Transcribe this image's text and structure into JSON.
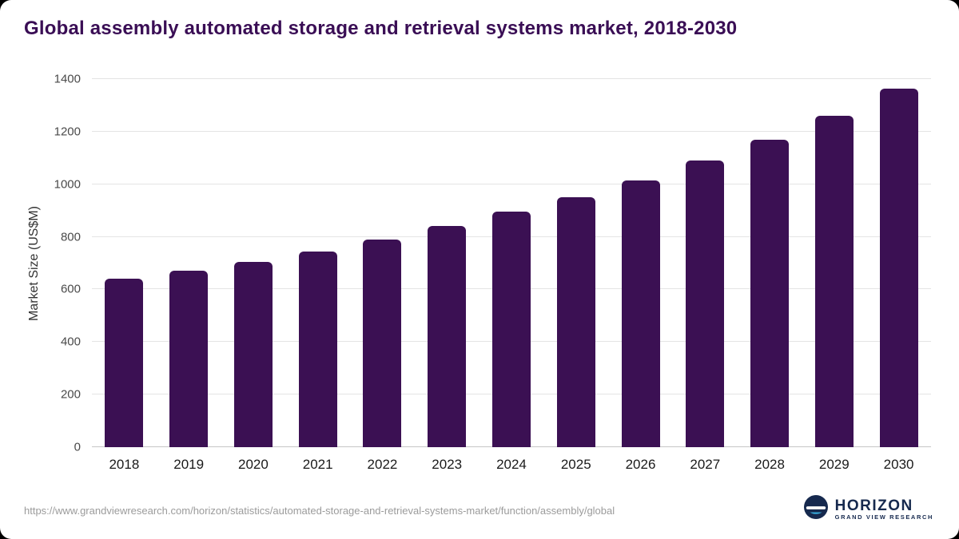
{
  "title": "Global assembly automated storage and retrieval systems market, 2018-2030",
  "chart_data": {
    "type": "bar",
    "title": "Global assembly automated storage and retrieval systems market, 2018-2030",
    "categories": [
      "2018",
      "2019",
      "2020",
      "2021",
      "2022",
      "2023",
      "2024",
      "2025",
      "2026",
      "2027",
      "2028",
      "2029",
      "2030"
    ],
    "values": [
      640,
      670,
      705,
      745,
      790,
      840,
      895,
      950,
      1015,
      1090,
      1170,
      1260,
      1365
    ],
    "xlabel": "",
    "ylabel": "Market Size (US$M)",
    "ylim": [
      0,
      1400
    ],
    "ytick_step": 200,
    "grid": true,
    "legend": "none",
    "bar_color": "#3b1053"
  },
  "footer": {
    "source_url": "https://www.grandviewresearch.com/horizon/statistics/automated-storage-and-retrieval-systems-market/function/assembly/global",
    "logo_title": "HORIZON",
    "logo_subtitle": "GRAND VIEW RESEARCH"
  },
  "colors": {
    "title_text": "#3a0e55",
    "bar": "#3b1053",
    "gridline": "#e4e4e4",
    "logo_navy": "#16294e",
    "logo_blue": "#3ab5e5"
  }
}
